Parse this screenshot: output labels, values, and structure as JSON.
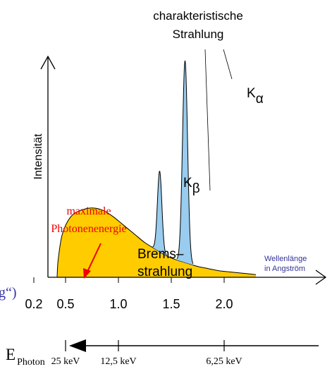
{
  "chart_data": {
    "type": "area",
    "title": "",
    "ylabel": "Intensität",
    "xlim": [
      0.0,
      2.35
    ],
    "x_ticks": [
      "0.2",
      "0.5",
      "1.0",
      "1.5",
      "2.0"
    ],
    "x_tick_values": [
      0.2,
      0.5,
      1.0,
      1.5,
      2.0
    ],
    "x_axis_note": "Wellenlänge\nin Angström",
    "series": [
      {
        "name": "Brems–\nstrahlung",
        "x": [
          0.42,
          0.43,
          0.47,
          0.55,
          0.65,
          0.75,
          0.85,
          0.95,
          1.05,
          1.15,
          1.25,
          1.35,
          1.45,
          1.55,
          1.65,
          1.75,
          1.85,
          1.95,
          2.05,
          2.15,
          2.25,
          2.3
        ],
        "y": [
          0.0,
          0.08,
          0.2,
          0.28,
          0.31,
          0.32,
          0.31,
          0.28,
          0.24,
          0.2,
          0.16,
          0.13,
          0.1,
          0.08,
          0.065,
          0.05,
          0.04,
          0.03,
          0.025,
          0.02,
          0.015,
          0.012
        ]
      },
      {
        "name": "charakteristische\nStrahlung",
        "peaks": [
          {
            "label": "K",
            "subscript": "β",
            "x": 1.39,
            "y": 0.49
          },
          {
            "label": "K",
            "subscript": "α",
            "x": 1.63,
            "y": 1.0
          }
        ]
      }
    ],
    "annotations": {
      "max_energy": "maximale\nPhotonenenergie",
      "axis_cut_text": "g“)"
    },
    "energy_axis": {
      "label": "E",
      "subscript": "Photon",
      "ticks": [
        {
          "label": "25 keV",
          "x": 0.5
        },
        {
          "label": "12,5 keV",
          "x": 1.0
        },
        {
          "label": "6,25 keV",
          "x": 2.0
        }
      ]
    }
  },
  "colors": {
    "bremsstrahlung_fill": "#FFCC00",
    "peak_fill": "#99CCEE",
    "annotation_red": "#EE0000",
    "note_blue": "#333399",
    "axis": "#000000"
  }
}
